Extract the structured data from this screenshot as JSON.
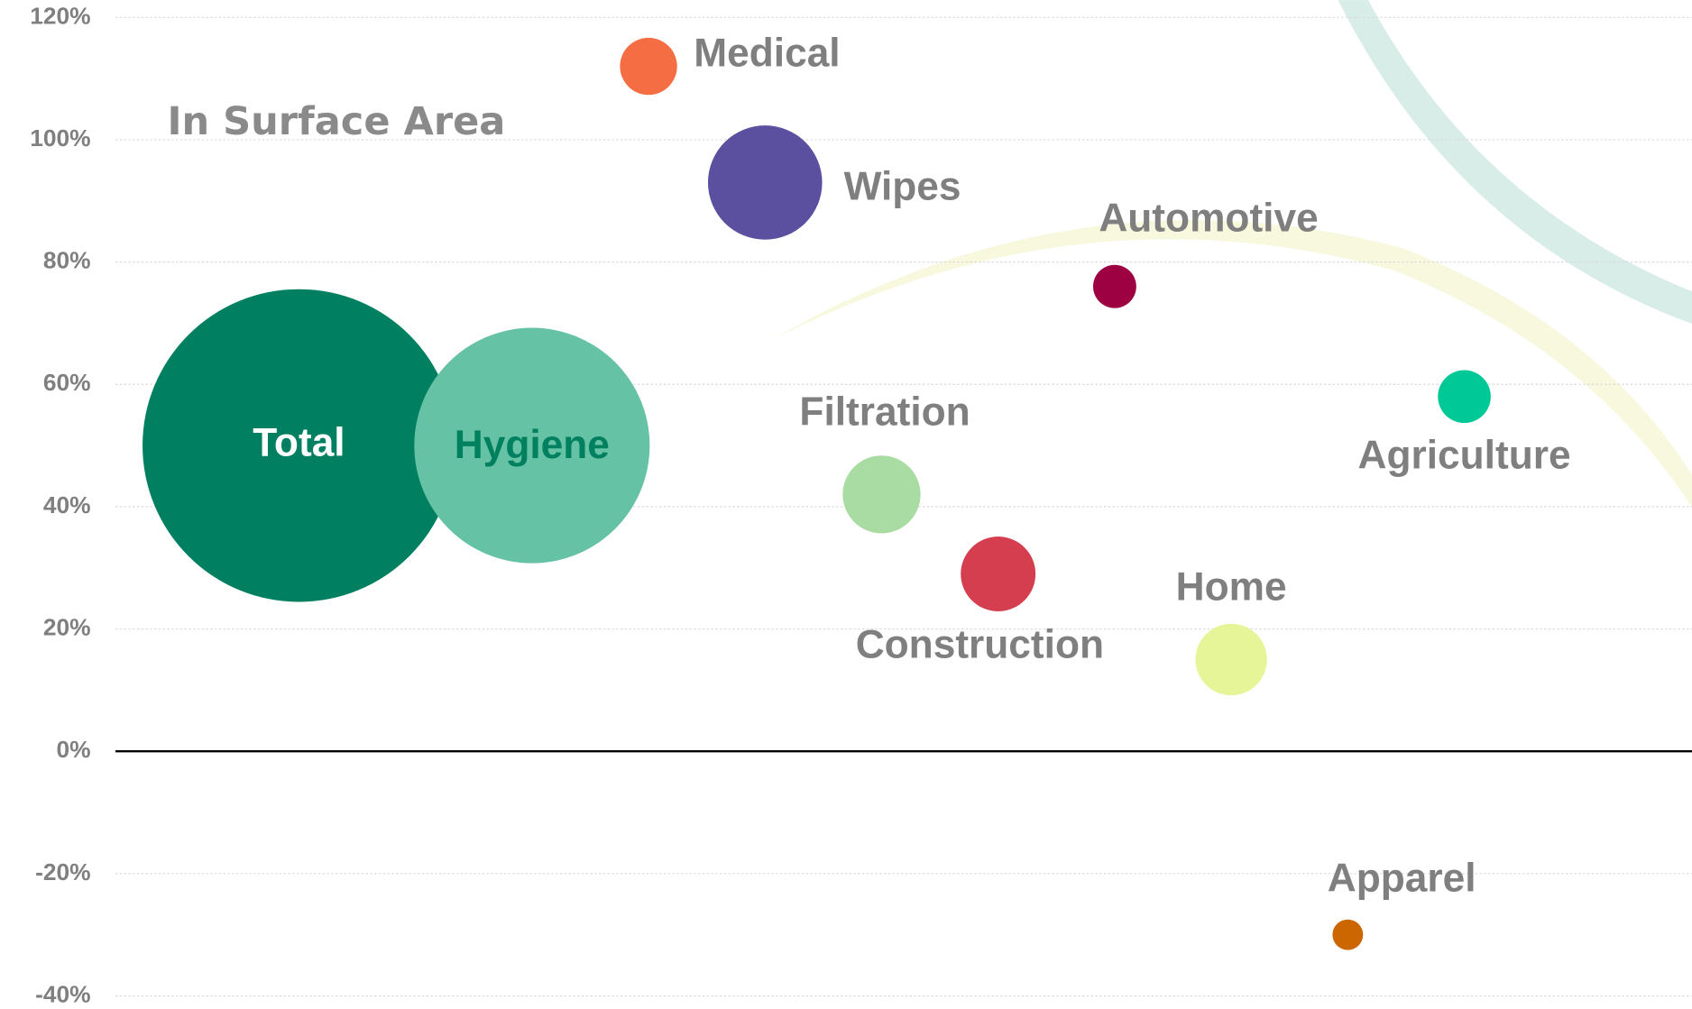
{
  "chart_data": {
    "type": "bubble",
    "annotation": "In Surface Area",
    "categories": [
      "Total",
      null,
      "Hygiene",
      "Medical",
      "Wipes",
      "Filtration",
      "Construction",
      "Automotive",
      "Home",
      "Apparel",
      "Agriculture"
    ],
    "values": [
      50,
      null,
      50,
      112,
      93,
      42,
      29,
      76,
      15,
      -30,
      58
    ],
    "sizes": [
      210,
      null,
      119,
      7,
      28,
      13,
      12,
      4,
      11,
      2,
      6
    ],
    "colors": [
      "#008060",
      null,
      "#66c2a5",
      "#f46d43",
      "#5b4fa0",
      "#a9dca2",
      "#d53e4f",
      "#9e0142",
      "#e6f598",
      "#cc6600",
      "#00c896"
    ],
    "ylim": [
      -40,
      120
    ],
    "yticks": [
      {
        "value": -40,
        "label": "-40%"
      },
      {
        "value": -20,
        "label": "-20%"
      },
      {
        "value": 0,
        "label": "0%"
      },
      {
        "value": 20,
        "label": "20%"
      },
      {
        "value": 40,
        "label": "40%"
      },
      {
        "value": 60,
        "label": "60%"
      },
      {
        "value": 80,
        "label": "80%"
      },
      {
        "value": 100,
        "label": "100%"
      },
      {
        "value": 120,
        "label": "120%"
      }
    ],
    "grid": true
  }
}
